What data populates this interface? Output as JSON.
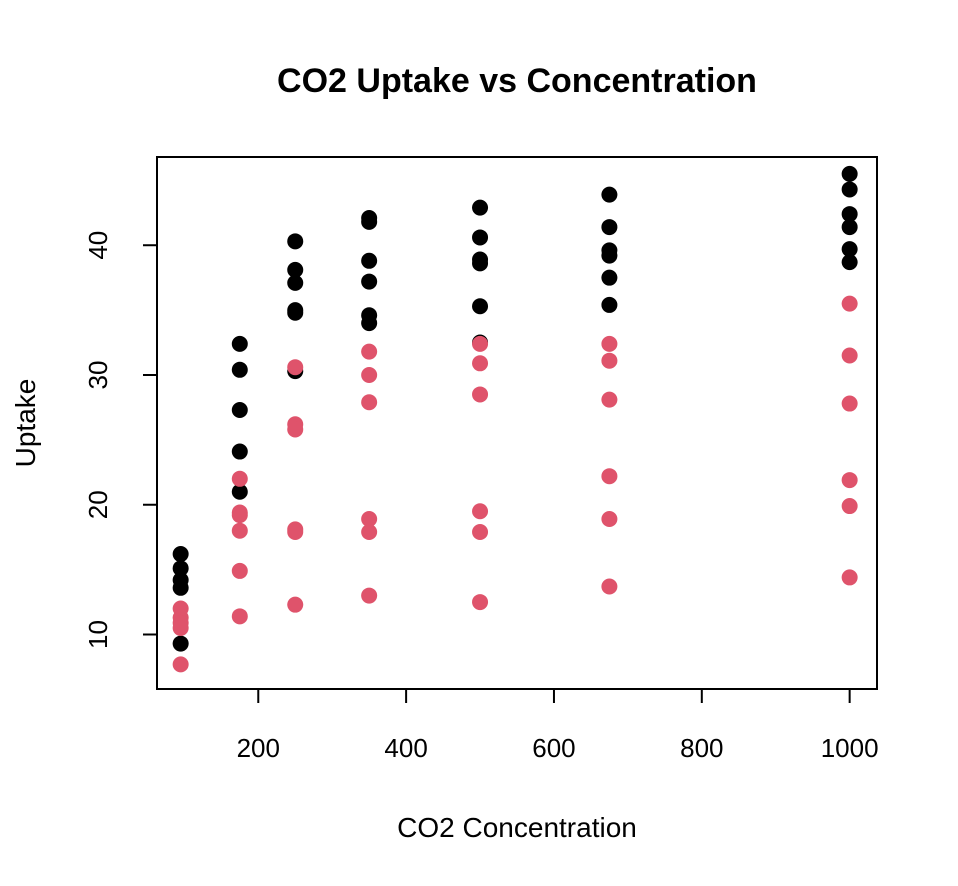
{
  "chart_data": {
    "type": "scatter",
    "title": "CO2 Uptake vs Concentration",
    "xlabel": "CO2 Concentration",
    "ylabel": "Uptake",
    "xlim": [
      63,
      1037
    ],
    "ylim": [
      5.8,
      46.8
    ],
    "xticks": [
      200,
      400,
      600,
      800,
      1000
    ],
    "yticks": [
      10,
      20,
      30,
      40
    ],
    "grid": false,
    "legend": "none",
    "series": [
      {
        "color": "#000000",
        "points": [
          [
            95,
            16.2
          ],
          [
            95,
            15.1
          ],
          [
            95,
            14.2
          ],
          [
            95,
            13.6
          ],
          [
            95,
            9.3
          ],
          [
            175,
            32.4
          ],
          [
            175,
            30.4
          ],
          [
            175,
            27.3
          ],
          [
            175,
            24.1
          ],
          [
            175,
            21.0
          ],
          [
            250,
            40.3
          ],
          [
            250,
            38.1
          ],
          [
            250,
            37.1
          ],
          [
            250,
            35.0
          ],
          [
            250,
            34.8
          ],
          [
            250,
            30.3
          ],
          [
            350,
            42.1
          ],
          [
            350,
            41.8
          ],
          [
            350,
            38.8
          ],
          [
            350,
            37.2
          ],
          [
            350,
            34.6
          ],
          [
            350,
            34.0
          ],
          [
            500,
            42.9
          ],
          [
            500,
            40.6
          ],
          [
            500,
            38.9
          ],
          [
            500,
            38.6
          ],
          [
            500,
            35.3
          ],
          [
            500,
            32.5
          ],
          [
            675,
            43.9
          ],
          [
            675,
            41.4
          ],
          [
            675,
            39.6
          ],
          [
            675,
            39.2
          ],
          [
            675,
            37.5
          ],
          [
            675,
            35.4
          ],
          [
            1000,
            45.5
          ],
          [
            1000,
            44.3
          ],
          [
            1000,
            42.4
          ],
          [
            1000,
            41.4
          ],
          [
            1000,
            39.7
          ],
          [
            1000,
            38.7
          ]
        ]
      },
      {
        "color": "#DF536B",
        "points": [
          [
            95,
            12.0
          ],
          [
            95,
            11.3
          ],
          [
            95,
            10.9
          ],
          [
            95,
            10.5
          ],
          [
            95,
            7.7
          ],
          [
            175,
            22.0
          ],
          [
            175,
            19.4
          ],
          [
            175,
            19.2
          ],
          [
            175,
            18.0
          ],
          [
            175,
            14.9
          ],
          [
            175,
            11.4
          ],
          [
            250,
            30.6
          ],
          [
            250,
            26.2
          ],
          [
            250,
            25.8
          ],
          [
            250,
            18.1
          ],
          [
            250,
            17.9
          ],
          [
            250,
            12.3
          ],
          [
            350,
            31.8
          ],
          [
            350,
            30.0
          ],
          [
            350,
            27.9
          ],
          [
            350,
            18.9
          ],
          [
            350,
            17.9
          ],
          [
            350,
            13.0
          ],
          [
            500,
            32.4
          ],
          [
            500,
            30.9
          ],
          [
            500,
            28.5
          ],
          [
            500,
            19.5
          ],
          [
            500,
            17.9
          ],
          [
            500,
            12.5
          ],
          [
            675,
            32.4
          ],
          [
            675,
            31.1
          ],
          [
            675,
            28.1
          ],
          [
            675,
            22.2
          ],
          [
            675,
            18.9
          ],
          [
            675,
            13.7
          ],
          [
            1000,
            35.5
          ],
          [
            1000,
            31.5
          ],
          [
            1000,
            27.8
          ],
          [
            1000,
            21.9
          ],
          [
            1000,
            19.9
          ],
          [
            1000,
            14.4
          ]
        ]
      }
    ]
  }
}
